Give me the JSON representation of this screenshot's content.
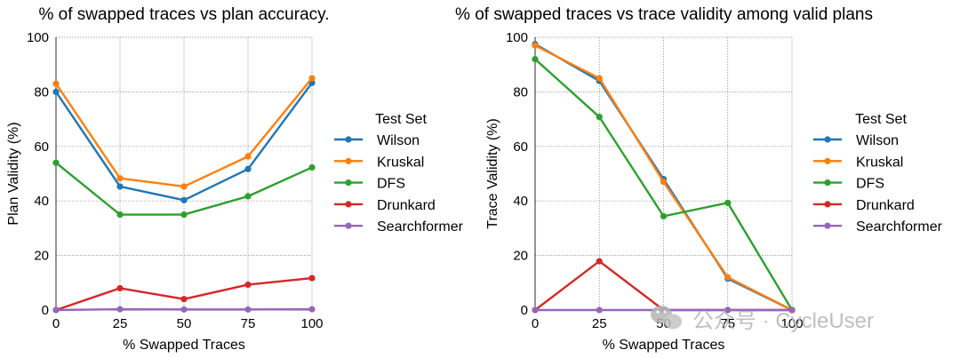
{
  "chart_data": [
    {
      "type": "line",
      "title": "% of swapped traces vs plan accuracy.",
      "xlabel": "% Swapped Traces",
      "ylabel": "Plan Validity (%)",
      "x": [
        0,
        25,
        50,
        75,
        100
      ],
      "xticks": [
        "0",
        "25",
        "50",
        "75",
        "100"
      ],
      "yticks": [
        "0",
        "20",
        "40",
        "60",
        "80",
        "100"
      ],
      "xlim": [
        0,
        100
      ],
      "ylim": [
        0,
        100
      ],
      "grid": true,
      "legend_title": "Test Set",
      "legend_position": "right",
      "series": [
        {
          "name": "Wilson",
          "color": "#1f77b4",
          "values": [
            80,
            45.3,
            40.3,
            51.7,
            83.3
          ]
        },
        {
          "name": "Kruskal",
          "color": "#ff7f0e",
          "values": [
            83,
            48.3,
            45.3,
            56.3,
            85
          ]
        },
        {
          "name": "DFS",
          "color": "#2ca02c",
          "values": [
            54,
            35,
            35,
            41.7,
            52.3
          ]
        },
        {
          "name": "Drunkard",
          "color": "#d62728",
          "values": [
            0,
            8,
            4,
            9.3,
            11.7
          ]
        },
        {
          "name": "Searchformer",
          "color": "#9467bd",
          "values": [
            0,
            0.3,
            0.2,
            0.2,
            0.3
          ]
        }
      ]
    },
    {
      "type": "line",
      "title": "% of swapped traces vs trace validity among valid plans",
      "xlabel": "% Swapped Traces",
      "ylabel": "Trace Validity (%)",
      "x": [
        0,
        25,
        50,
        75,
        100
      ],
      "xticks": [
        "0",
        "25",
        "50",
        "75",
        "100"
      ],
      "yticks": [
        "0",
        "20",
        "40",
        "60",
        "80",
        "100"
      ],
      "xlim": [
        0,
        100
      ],
      "ylim": [
        0,
        100
      ],
      "grid": true,
      "legend_title": "Test Set",
      "legend_position": "right",
      "series": [
        {
          "name": "Wilson",
          "color": "#1f77b4",
          "values": [
            97.5,
            84,
            48,
            11.5,
            0
          ]
        },
        {
          "name": "Kruskal",
          "color": "#ff7f0e",
          "values": [
            97,
            85,
            47,
            12,
            0
          ]
        },
        {
          "name": "DFS",
          "color": "#2ca02c",
          "values": [
            92,
            70.8,
            34.4,
            39.3,
            0
          ]
        },
        {
          "name": "Drunkard",
          "color": "#d62728",
          "values": [
            0,
            17.9,
            0,
            0,
            0
          ]
        },
        {
          "name": "Searchformer",
          "color": "#9467bd",
          "values": [
            0,
            0,
            0,
            0,
            0
          ]
        }
      ]
    }
  ],
  "watermark": {
    "text": "公众号 · CycleUser",
    "icon": "wechat-icon"
  }
}
